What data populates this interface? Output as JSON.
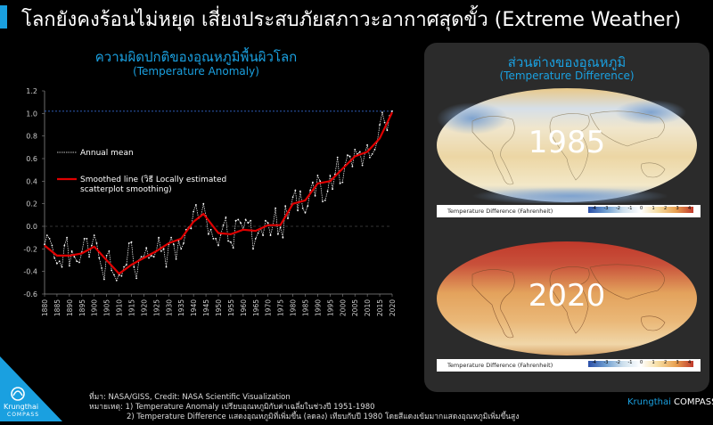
{
  "header": {
    "title": "โลกยังคงร้อนไม่หยุด เสี่ยงประสบภัยสภาวะอากาศสุดขั้ว (Extreme Weather)",
    "accent_color": "#1aa0e0"
  },
  "left_panel": {
    "title_th": "ความผิดปกติของอุณหภูมิพื้นผิวโลก",
    "title_en": "(Temperature Anomaly)"
  },
  "right_panel": {
    "title_th": "ส่วนต่างของอุณหภูมิ",
    "title_en": "(Temperature Difference)",
    "maps": [
      {
        "year": "1985",
        "scale_label": "Temperature Difference (Fahrenheit)",
        "scale_ticks": [
          "-4",
          "-3",
          "-2",
          "-1",
          "0",
          "1",
          "2",
          "3",
          "4"
        ]
      },
      {
        "year": "2020",
        "scale_label": "Temperature Difference (Fahrenheit)",
        "scale_ticks": [
          "-4",
          "-3",
          "-2",
          "-1",
          "0",
          "1",
          "2",
          "3",
          "4"
        ]
      }
    ]
  },
  "footer": {
    "source": "ที่มา: NASA/GISS, Credit: NASA Scientific Visualization",
    "note1": "หมายเหตุ: 1) Temperature Anomaly เปรียบอุณหภูมิกับค่าเฉลี่ยในช่วงปี 1951-1980",
    "note2": "2) Temperature Difference แสดงอุณหภูมิที่เพิ่มขึ้น (ลดลง) เทียบกับปี 1980 โดยสีแดงเข้มมากแสดงอุณหภูมิเพิ่มขึ้นสูง",
    "brand_left": "Krungthai",
    "brand_left_sub": "COMPASS",
    "brand_right_a": "Krungthai",
    "brand_right_b": "COMPASS"
  },
  "chart_data": {
    "type": "line",
    "title": "ความผิดปกติของอุณหภูมิพื้นผิวโลก",
    "subtitle": "(Temperature Anomaly)",
    "xlabel": "",
    "ylabel": "",
    "xlim": [
      1880,
      2020
    ],
    "ylim": [
      -0.6,
      1.2
    ],
    "yticks": [
      "1.2",
      "1.0",
      "0.8",
      "0.6",
      "0.4",
      "0.2",
      "0.0",
      "-0.2",
      "-0.4",
      "-0.6"
    ],
    "xticks": [
      "1880",
      "1885",
      "1890",
      "1895",
      "1900",
      "1905",
      "1910",
      "1915",
      "1920",
      "1925",
      "1930",
      "1935",
      "1940",
      "1945",
      "1950",
      "1955",
      "1960",
      "1965",
      "1970",
      "1975",
      "1980",
      "1985",
      "1990",
      "1995",
      "2000",
      "2005",
      "2010",
      "2015",
      "2020"
    ],
    "reference_line": 1.02,
    "grid": false,
    "legend": "top-left",
    "series": [
      {
        "name": "Annual mean",
        "color": "#ffffff",
        "x": [
          1880,
          1881,
          1882,
          1883,
          1884,
          1885,
          1886,
          1887,
          1888,
          1889,
          1890,
          1891,
          1892,
          1893,
          1894,
          1895,
          1896,
          1897,
          1898,
          1899,
          1900,
          1901,
          1902,
          1903,
          1904,
          1905,
          1906,
          1907,
          1908,
          1909,
          1910,
          1911,
          1912,
          1913,
          1914,
          1915,
          1916,
          1917,
          1918,
          1919,
          1920,
          1921,
          1922,
          1923,
          1924,
          1925,
          1926,
          1927,
          1928,
          1929,
          1930,
          1931,
          1932,
          1933,
          1934,
          1935,
          1936,
          1937,
          1938,
          1939,
          1940,
          1941,
          1942,
          1943,
          1944,
          1945,
          1946,
          1947,
          1948,
          1949,
          1950,
          1951,
          1952,
          1953,
          1954,
          1955,
          1956,
          1957,
          1958,
          1959,
          1960,
          1961,
          1962,
          1963,
          1964,
          1965,
          1966,
          1967,
          1968,
          1969,
          1970,
          1971,
          1972,
          1973,
          1974,
          1975,
          1976,
          1977,
          1978,
          1979,
          1980,
          1981,
          1982,
          1983,
          1984,
          1985,
          1986,
          1987,
          1988,
          1989,
          1990,
          1991,
          1992,
          1993,
          1994,
          1995,
          1996,
          1997,
          1998,
          1999,
          2000,
          2001,
          2002,
          2003,
          2004,
          2005,
          2006,
          2007,
          2008,
          2009,
          2010,
          2011,
          2012,
          2013,
          2014,
          2015,
          2016,
          2017,
          2018,
          2019,
          2020
        ],
        "y": [
          -0.16,
          -0.08,
          -0.11,
          -0.17,
          -0.28,
          -0.33,
          -0.31,
          -0.36,
          -0.17,
          -0.1,
          -0.35,
          -0.22,
          -0.27,
          -0.31,
          -0.32,
          -0.23,
          -0.11,
          -0.11,
          -0.27,
          -0.17,
          -0.08,
          -0.15,
          -0.28,
          -0.37,
          -0.47,
          -0.26,
          -0.22,
          -0.39,
          -0.43,
          -0.48,
          -0.43,
          -0.44,
          -0.36,
          -0.34,
          -0.15,
          -0.14,
          -0.36,
          -0.46,
          -0.3,
          -0.27,
          -0.27,
          -0.19,
          -0.28,
          -0.26,
          -0.27,
          -0.22,
          -0.1,
          -0.22,
          -0.2,
          -0.36,
          -0.16,
          -0.1,
          -0.16,
          -0.29,
          -0.13,
          -0.2,
          -0.15,
          -0.03,
          -0.01,
          -0.02,
          0.13,
          0.19,
          0.07,
          0.09,
          0.2,
          0.09,
          -0.07,
          -0.03,
          -0.11,
          -0.11,
          -0.17,
          -0.07,
          0.01,
          0.08,
          -0.13,
          -0.14,
          -0.19,
          0.05,
          0.06,
          0.03,
          -0.03,
          0.06,
          0.03,
          0.05,
          -0.2,
          -0.11,
          -0.06,
          -0.02,
          -0.08,
          0.05,
          0.03,
          -0.08,
          0.01,
          0.16,
          -0.07,
          -0.01,
          -0.1,
          0.18,
          0.07,
          0.16,
          0.26,
          0.32,
          0.14,
          0.31,
          0.16,
          0.12,
          0.18,
          0.32,
          0.39,
          0.27,
          0.45,
          0.4,
          0.22,
          0.23,
          0.31,
          0.45,
          0.33,
          0.46,
          0.61,
          0.38,
          0.39,
          0.54,
          0.63,
          0.62,
          0.53,
          0.68,
          0.64,
          0.66,
          0.54,
          0.65,
          0.72,
          0.61,
          0.64,
          0.68,
          0.75,
          0.9,
          1.01,
          0.92,
          0.85,
          0.98,
          1.02
        ]
      },
      {
        "name": "Smoothed line (วิธี Locally estimated scatterplot smoothing)",
        "color": "#e00000",
        "x": [
          1880,
          1885,
          1890,
          1895,
          1900,
          1905,
          1910,
          1915,
          1920,
          1925,
          1930,
          1935,
          1940,
          1944,
          1950,
          1955,
          1960,
          1965,
          1970,
          1975,
          1980,
          1985,
          1990,
          1995,
          2000,
          2005,
          2010,
          2015,
          2020
        ],
        "y": [
          -0.17,
          -0.26,
          -0.26,
          -0.24,
          -0.18,
          -0.3,
          -0.42,
          -0.34,
          -0.28,
          -0.22,
          -0.15,
          -0.11,
          0.04,
          0.11,
          -0.06,
          -0.07,
          -0.03,
          -0.04,
          0.01,
          0.01,
          0.2,
          0.23,
          0.38,
          0.4,
          0.51,
          0.62,
          0.66,
          0.78,
          1.01
        ]
      }
    ]
  }
}
